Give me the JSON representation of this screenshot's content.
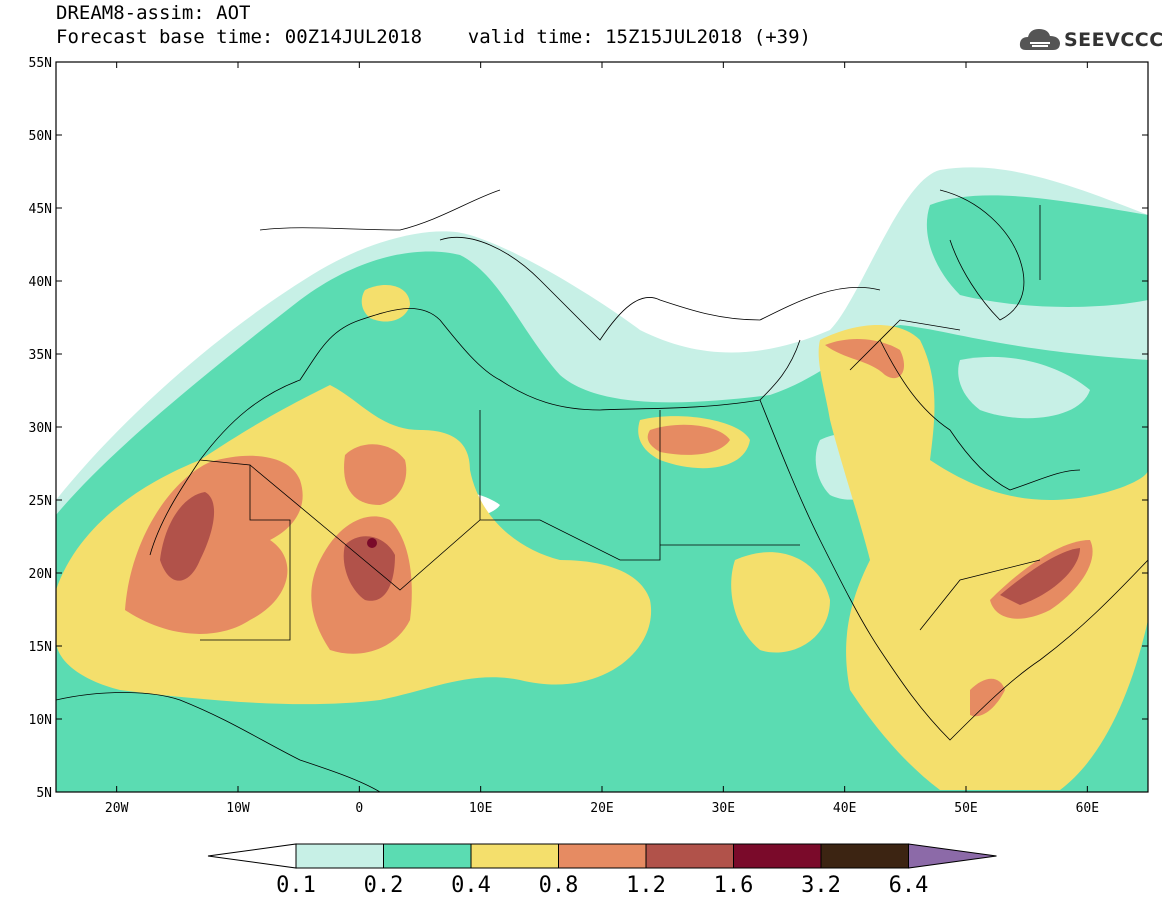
{
  "title": {
    "line1": "DREAM8-assim: AOT",
    "line2": "Forecast base time: 00Z14JUL2018    valid time: 15Z15JUL2018 (+39)"
  },
  "logo": {
    "text": "SEEVCCC",
    "icon": "cloud-icon"
  },
  "map": {
    "lon_range": [
      -25,
      65
    ],
    "lat_range": [
      5,
      55
    ],
    "lat_ticks": [
      "55N",
      "50N",
      "45N",
      "40N",
      "35N",
      "30N",
      "25N",
      "20N",
      "15N",
      "10N",
      "5N"
    ],
    "lon_ticks": [
      "20W",
      "10W",
      "0",
      "10E",
      "20E",
      "30E",
      "40E",
      "50E",
      "60E"
    ],
    "variable": "Aerosol Optical Thickness"
  },
  "colorbar": {
    "labels": [
      "0.1",
      "0.2",
      "0.4",
      "0.8",
      "1.2",
      "1.6",
      "3.2",
      "6.4"
    ],
    "colors": [
      "#ffffff",
      "#c7f0e6",
      "#5bdcb2",
      "#f4df6c",
      "#e68b62",
      "#b1524a",
      "#7a0a2a",
      "#3c2412",
      "#8c6aa8"
    ]
  }
}
